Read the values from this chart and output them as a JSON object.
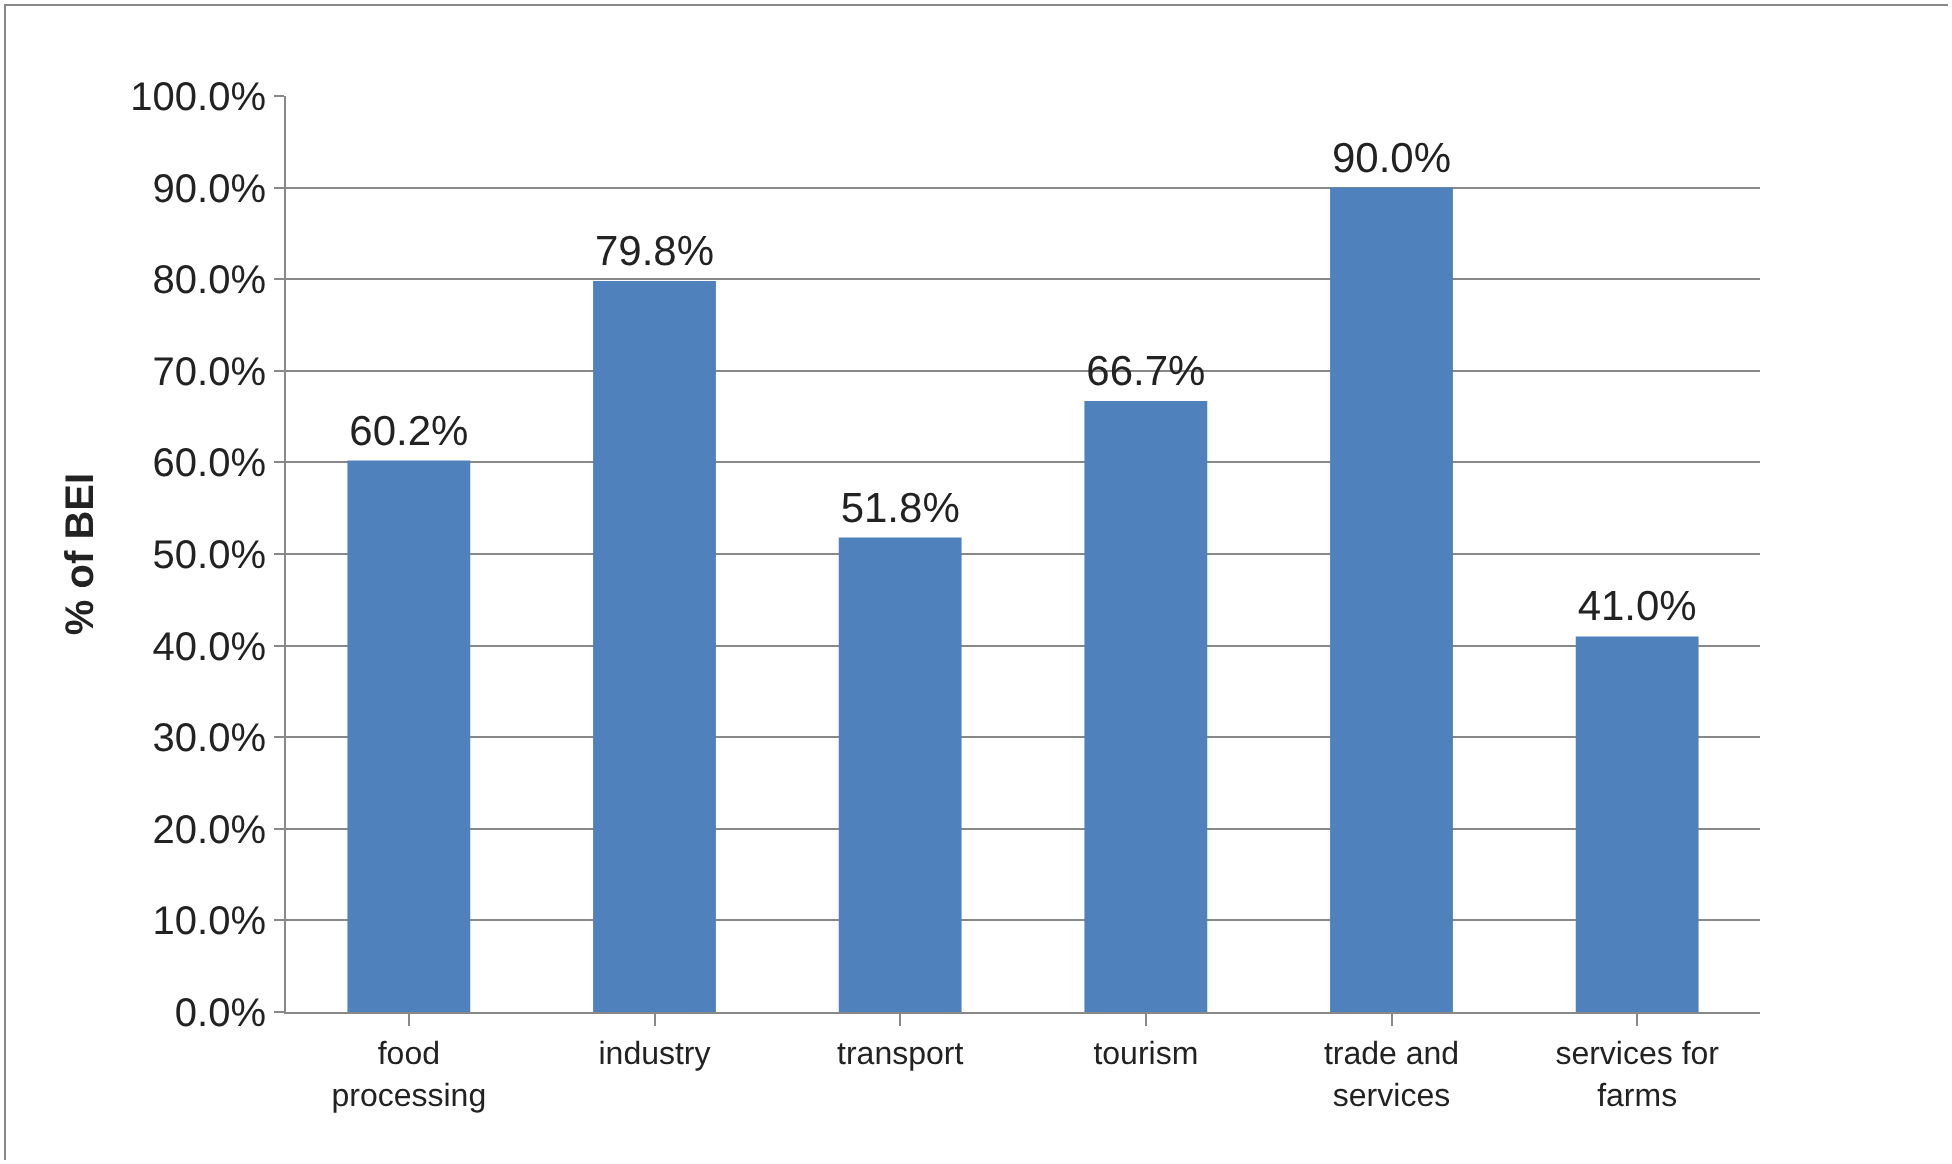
{
  "chart_data": {
    "type": "bar",
    "ylabel": "% of BEI",
    "categories": [
      "food processing",
      "industry",
      "transport",
      "tourism",
      "trade and services",
      "services for farms"
    ],
    "values": [
      60.2,
      79.8,
      51.8,
      66.7,
      90.0,
      41.0
    ],
    "value_labels": [
      "60.2%",
      "79.8%",
      "51.8%",
      "66.7%",
      "90.0%",
      "41.0%"
    ],
    "color": "#4f81bd",
    "ylim": [
      0,
      100
    ],
    "yticks": [
      {
        "value": 0,
        "label": "0.0%"
      },
      {
        "value": 10,
        "label": "10.0%"
      },
      {
        "value": 20,
        "label": "20.0%"
      },
      {
        "value": 30,
        "label": "30.0%"
      },
      {
        "value": 40,
        "label": "40.0%"
      },
      {
        "value": 50,
        "label": "50.0%"
      },
      {
        "value": 60,
        "label": "60.0%"
      },
      {
        "value": 70,
        "label": "70.0%"
      },
      {
        "value": 80,
        "label": "80.0%"
      },
      {
        "value": 90,
        "label": "90.0%"
      },
      {
        "value": 100,
        "label": "100.0%"
      }
    ],
    "grid": "y"
  }
}
